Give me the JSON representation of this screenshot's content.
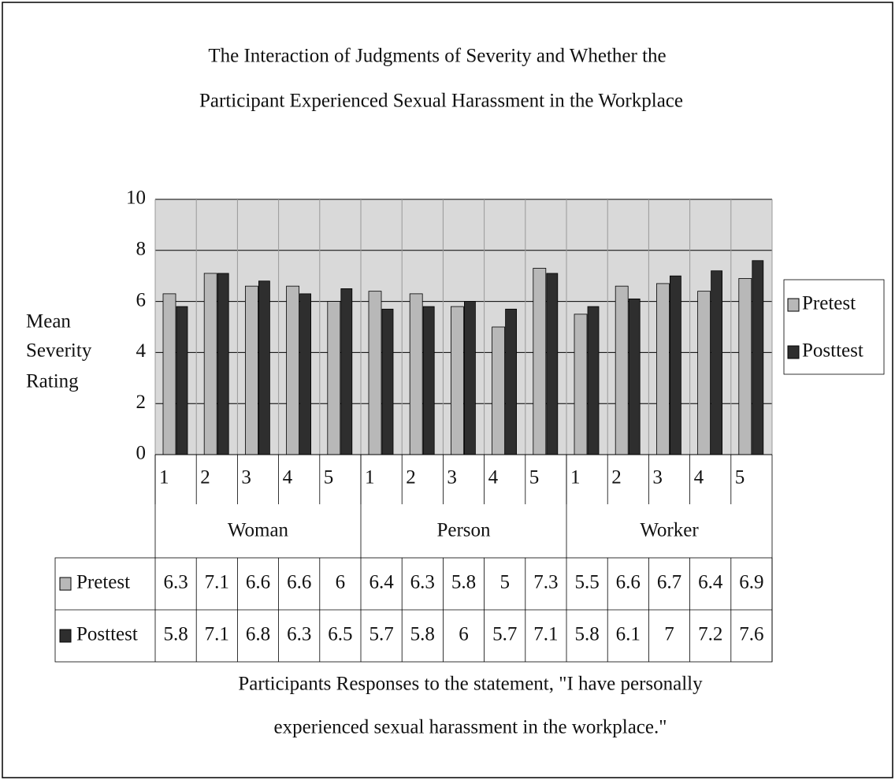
{
  "chart_data": {
    "type": "bar",
    "title": [
      "The Interaction of Judgments of Severity and Whether the",
      "Participant Experienced Sexual Harassment in the Workplace"
    ],
    "ylabel": [
      "Mean",
      "Severity",
      "Rating"
    ],
    "xlabel": [
      "Participants Responses to the statement, \"I have personally",
      "experienced sexual harassment in the workplace.\""
    ],
    "groups": [
      "Woman",
      "Person",
      "Worker"
    ],
    "categories": [
      "1",
      "2",
      "3",
      "4",
      "5",
      "1",
      "2",
      "3",
      "4",
      "5",
      "1",
      "2",
      "3",
      "4",
      "5"
    ],
    "series": [
      {
        "name": "Pretest",
        "color": "#b8b8b8",
        "values": [
          6.3,
          7.1,
          6.6,
          6.6,
          6,
          6.4,
          6.3,
          5.8,
          5,
          7.3,
          5.5,
          6.6,
          6.7,
          6.4,
          6.9
        ]
      },
      {
        "name": "Posttest",
        "color": "#2e2e2e",
        "values": [
          5.8,
          7.1,
          6.8,
          6.3,
          6.5,
          5.7,
          5.8,
          6,
          5.7,
          7.1,
          5.8,
          6.1,
          7,
          7.2,
          7.6
        ]
      }
    ],
    "ylim": [
      0,
      10
    ],
    "yticks": [
      0,
      2,
      4,
      6,
      8,
      10
    ],
    "grid": true,
    "legend": "right",
    "data_table": true
  }
}
